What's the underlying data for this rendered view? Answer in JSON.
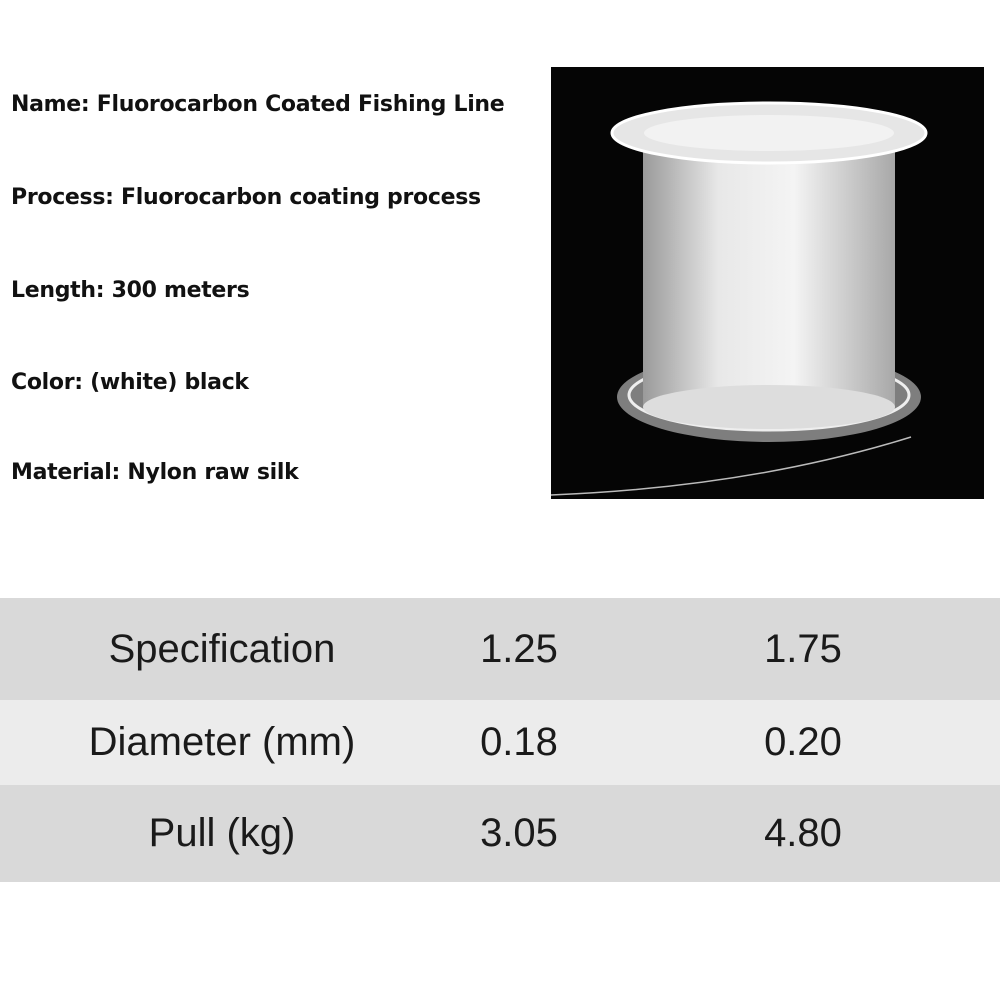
{
  "specs": [
    "Name: Fluorocarbon Coated Fishing Line",
    "Process: Fluorocarbon coating process",
    "Length: 300 meters",
    "Color: (white) black",
    "Material: Nylon raw silk"
  ],
  "table": {
    "rows": [
      [
        "Specification",
        "1.25",
        "1.75"
      ],
      [
        "Diameter (mm)",
        "0.18",
        "0.20"
      ],
      [
        "Pull (kg)",
        "3.05",
        "4.80"
      ]
    ],
    "row_colors": [
      "#d9d9d9",
      "#ececec",
      "#d9d9d9"
    ]
  }
}
